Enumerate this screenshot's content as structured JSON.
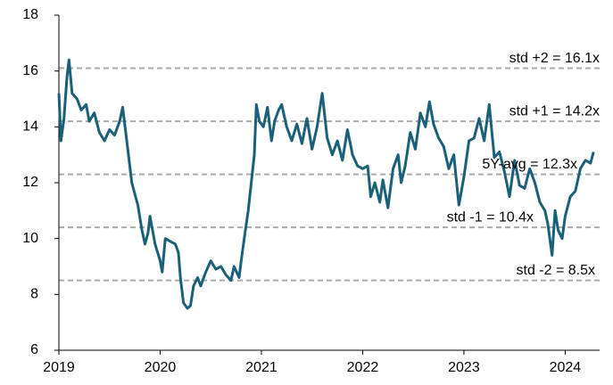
{
  "chart_data": {
    "type": "line",
    "x": [
      2019.0,
      2019.02,
      2019.05,
      2019.08,
      2019.1,
      2019.13,
      2019.18,
      2019.22,
      2019.27,
      2019.3,
      2019.35,
      2019.4,
      2019.45,
      2019.5,
      2019.55,
      2019.6,
      2019.63,
      2019.68,
      2019.72,
      2019.78,
      2019.82,
      2019.85,
      2019.88,
      2019.9,
      2019.95,
      2020.0,
      2020.02,
      2020.05,
      2020.1,
      2020.15,
      2020.18,
      2020.2,
      2020.23,
      2020.27,
      2020.3,
      2020.33,
      2020.37,
      2020.4,
      2020.45,
      2020.5,
      2020.55,
      2020.6,
      2020.65,
      2020.7,
      2020.73,
      2020.78,
      2020.8,
      2020.83,
      2020.87,
      2020.9,
      2020.93,
      2020.95,
      2020.98,
      2021.02,
      2021.06,
      2021.1,
      2021.13,
      2021.17,
      2021.2,
      2021.25,
      2021.3,
      2021.35,
      2021.4,
      2021.45,
      2021.5,
      2021.55,
      2021.6,
      2021.65,
      2021.7,
      2021.75,
      2021.8,
      2021.85,
      2021.9,
      2021.95,
      2022.0,
      2022.05,
      2022.08,
      2022.12,
      2022.17,
      2022.2,
      2022.25,
      2022.3,
      2022.35,
      2022.38,
      2022.42,
      2022.47,
      2022.52,
      2022.57,
      2022.62,
      2022.66,
      2022.7,
      2022.75,
      2022.8,
      2022.85,
      2022.9,
      2022.95,
      2023.0,
      2023.05,
      2023.1,
      2023.15,
      2023.2,
      2023.25,
      2023.3,
      2023.35,
      2023.4,
      2023.45,
      2023.5,
      2023.55,
      2023.6,
      2023.65,
      2023.7,
      2023.75,
      2023.8,
      2023.83,
      2023.87,
      2023.9,
      2023.93,
      2023.97,
      2024.0,
      2024.05,
      2024.1,
      2024.15,
      2024.2,
      2024.25,
      2024.28
    ],
    "series": [
      {
        "color": "#1b6079",
        "values": [
          15.2,
          13.5,
          14.3,
          15.8,
          16.4,
          15.2,
          15.0,
          14.6,
          14.8,
          14.2,
          14.5,
          13.8,
          13.5,
          13.9,
          13.7,
          14.2,
          14.7,
          13.2,
          12.0,
          11.2,
          10.3,
          9.8,
          10.2,
          10.8,
          9.8,
          9.2,
          8.8,
          10.0,
          9.9,
          9.8,
          9.5,
          8.6,
          7.7,
          7.5,
          7.6,
          8.3,
          8.6,
          8.3,
          8.8,
          9.2,
          8.9,
          9.0,
          8.7,
          8.5,
          9.0,
          8.6,
          9.2,
          10.0,
          11.0,
          12.0,
          13.0,
          14.8,
          14.2,
          14.0,
          14.7,
          13.5,
          14.2,
          14.6,
          14.8,
          14.0,
          13.5,
          14.1,
          13.4,
          14.3,
          13.2,
          14.0,
          15.2,
          13.6,
          13.0,
          13.5,
          12.8,
          13.9,
          13.0,
          12.6,
          12.5,
          12.6,
          11.5,
          12.0,
          11.3,
          12.1,
          11.1,
          12.5,
          13.0,
          12.0,
          12.6,
          13.8,
          13.2,
          14.5,
          14.0,
          14.9,
          14.1,
          13.6,
          13.3,
          12.5,
          13.0,
          11.2,
          12.2,
          13.5,
          13.6,
          14.3,
          13.5,
          14.8,
          12.9,
          13.1,
          12.4,
          11.5,
          12.8,
          11.9,
          11.8,
          12.5,
          12.0,
          11.3,
          11.0,
          10.5,
          9.4,
          11.0,
          10.3,
          10.0,
          10.8,
          11.5,
          11.7,
          12.5,
          12.8,
          12.7,
          13.1
        ]
      }
    ],
    "reference_lines": [
      {
        "value": 16.1,
        "label": "std +2 = 16.1x"
      },
      {
        "value": 14.2,
        "label": "std +1 = 14.2x"
      },
      {
        "value": 12.3,
        "label": "5Y-avg = 12.3x"
      },
      {
        "value": 10.4,
        "label": "std -1 = 10.4x"
      },
      {
        "value": 8.5,
        "label": "std -2 = 8.5x"
      }
    ],
    "xlim": [
      2019,
      2024.34
    ],
    "xticks": [
      2019,
      2020,
      2021,
      2022,
      2023,
      2024
    ],
    "ylim": [
      6,
      18
    ],
    "yticks": [
      6,
      8,
      10,
      12,
      14,
      16,
      18
    ]
  }
}
